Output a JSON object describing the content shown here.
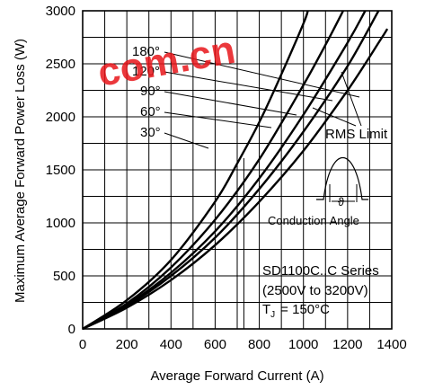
{
  "chart_data": {
    "type": "line",
    "title": "",
    "xlabel": "Average Forward Current (A)",
    "ylabel": "Maximum Average Forward Power Loss (W)",
    "xlim": [
      0,
      1400
    ],
    "ylim": [
      0,
      3000
    ],
    "x_ticks": [
      "0",
      "200",
      "400",
      "600",
      "800",
      "1000",
      "1200",
      "1400"
    ],
    "y_ticks": [
      "0",
      "500",
      "1000",
      "1500",
      "2000",
      "2500",
      "3000"
    ],
    "grid": true,
    "series": [
      {
        "name": "30°",
        "points": [
          [
            0,
            0
          ],
          [
            200,
            270
          ],
          [
            400,
            650
          ],
          [
            600,
            1200
          ],
          [
            700,
            1560
          ],
          [
            800,
            1950
          ],
          [
            900,
            2400
          ],
          [
            1000,
            2880
          ],
          [
            1020,
            3000
          ]
        ]
      },
      {
        "name": "60°",
        "points": [
          [
            0,
            0
          ],
          [
            200,
            240
          ],
          [
            400,
            580
          ],
          [
            600,
            1030
          ],
          [
            800,
            1600
          ],
          [
            1000,
            2300
          ],
          [
            1100,
            2680
          ],
          [
            1180,
            3000
          ]
        ]
      },
      {
        "name": "90°",
        "points": [
          [
            0,
            0
          ],
          [
            200,
            225
          ],
          [
            400,
            530
          ],
          [
            600,
            920
          ],
          [
            800,
            1420
          ],
          [
            1000,
            2020
          ],
          [
            1200,
            2700
          ],
          [
            1280,
            3000
          ]
        ]
      },
      {
        "name": "120°",
        "points": [
          [
            0,
            0
          ],
          [
            200,
            215
          ],
          [
            400,
            500
          ],
          [
            600,
            860
          ],
          [
            800,
            1320
          ],
          [
            1000,
            1860
          ],
          [
            1200,
            2480
          ],
          [
            1340,
            3000
          ]
        ]
      },
      {
        "name": "180°",
        "points": [
          [
            0,
            0
          ],
          [
            200,
            200
          ],
          [
            400,
            460
          ],
          [
            600,
            790
          ],
          [
            800,
            1200
          ],
          [
            1000,
            1680
          ],
          [
            1200,
            2250
          ],
          [
            1350,
            2730
          ],
          [
            1380,
            2830
          ]
        ]
      },
      {
        "name": "RMS Limit",
        "points": [
          [
            730,
            0
          ],
          [
            730,
            1610
          ]
        ]
      }
    ],
    "legend_labels": [
      "180°",
      "120°",
      "90°",
      "60°",
      "30°"
    ],
    "annotations": {
      "rms_limit": "RMS Limit",
      "conduction_angle": "Conduction Angle",
      "series_line1": "SD1100C..C Series",
      "series_line2": "(2500V to 3200V)",
      "tj_prefix": "T",
      "tj_subscript": "J",
      "tj_value": "= 150°C"
    }
  },
  "watermark": {
    "text": "com.cn",
    "color": "#e8161b"
  }
}
